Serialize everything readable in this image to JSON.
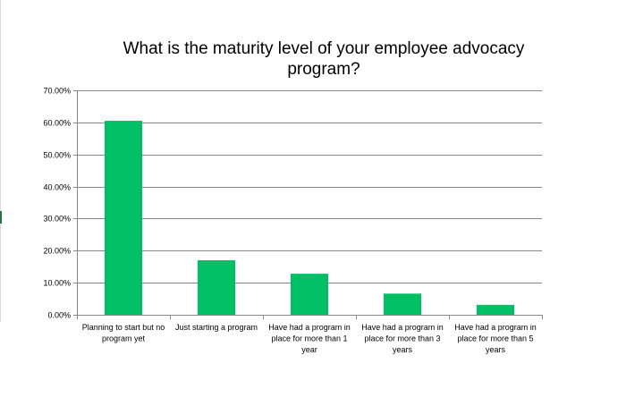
{
  "chart_data": {
    "type": "bar",
    "title": "What is the maturity level of your employee advocacy program?",
    "categories": [
      "Planning to start but no program yet",
      "Just starting a program",
      "Have had a program in place for more than 1 year",
      "Have had a program in place for more than 3 years",
      "Have had a program in place for more than 5 years"
    ],
    "category_label_lines": [
      [
        "Planning to start but no",
        "program yet"
      ],
      [
        "Just starting a program"
      ],
      [
        "Have had a program in",
        "place for more than 1",
        "year"
      ],
      [
        "Have had a program in",
        "place for more than 3",
        "years"
      ],
      [
        "Have had a program in",
        "place for more than 5",
        "years"
      ]
    ],
    "values": [
      60.5,
      17.0,
      12.8,
      6.6,
      3.1
    ],
    "ylim": [
      0,
      70
    ],
    "yticks": [
      0,
      10,
      20,
      30,
      40,
      50,
      60,
      70
    ],
    "ytick_labels": [
      "0.00%",
      "10.00%",
      "20.00%",
      "30.00%",
      "40.00%",
      "50.00%",
      "60.00%",
      "70.00%"
    ],
    "xlabel": "",
    "ylabel": "",
    "grid": true,
    "legend": "none",
    "bar_color": "#00c066",
    "gridline_color": "#888888"
  }
}
